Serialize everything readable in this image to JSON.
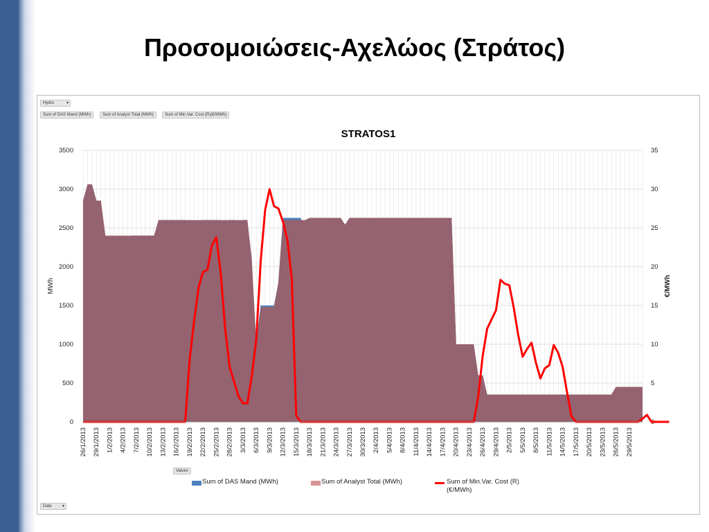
{
  "slide": {
    "title": "Προσομοιώσεις-Αχελώος (Στράτος)"
  },
  "pivot": {
    "filter_button": "Hydro",
    "value_buttons": [
      "Sum of DAS Mand  (MWh)",
      "Sum of Analyst Total (MWh)",
      "Sum of Min.Var. Cost (R)(€/MWh)"
    ],
    "values_button": "Values",
    "axis_button": "Date"
  },
  "colors": {
    "das": "#4f81bd",
    "analyst": "#c0504d",
    "overlap": "#956270",
    "cost": "#ff0000",
    "grid": "#d9d9d9",
    "slide_bar": "#3a5f91"
  },
  "chart_data": {
    "type": "area",
    "title": "STRATOS1",
    "ylabel": "MWh",
    "y2label": "€/MWh",
    "ylim": [
      0,
      3500
    ],
    "y2lim": [
      0,
      35
    ],
    "yticks": [
      0,
      500,
      1000,
      1500,
      2000,
      2500,
      3000,
      3500
    ],
    "y2ticks": [
      0,
      5,
      10,
      15,
      20,
      25,
      30,
      35
    ],
    "grid": true,
    "legend_position": "bottom",
    "x_start_date": "2013-01-26",
    "x_tick_labels": [
      "26/1/2013",
      "29/1/2013",
      "1/2/2013",
      "4/2/2013",
      "7/2/2013",
      "10/2/2013",
      "13/2/2013",
      "16/2/2013",
      "19/2/2013",
      "22/2/2013",
      "25/2/2013",
      "28/2/2013",
      "3/3/2013",
      "6/3/2013",
      "9/3/2013",
      "12/3/2013",
      "15/3/2013",
      "18/3/2013",
      "21/3/2013",
      "24/3/2013",
      "27/3/2013",
      "30/3/2013",
      "2/4/2013",
      "5/4/2013",
      "8/4/2013",
      "11/4/2013",
      "14/4/2013",
      "17/4/2013",
      "20/4/2013",
      "23/4/2013",
      "26/4/2013",
      "29/4/2013",
      "2/5/2013",
      "5/5/2013",
      "8/5/2013",
      "11/5/2013",
      "14/5/2013",
      "17/5/2013",
      "20/5/2013",
      "23/5/2013",
      "26/5/2013",
      "29/5/2013"
    ],
    "series": [
      {
        "name": "Sum of DAS Mand  (MWh)",
        "axis": "left",
        "style": "area",
        "values": [
          2850,
          3060,
          3060,
          2850,
          2850,
          2400,
          2380,
          2360,
          2400,
          2350,
          2280,
          2400,
          2400,
          2400,
          2400,
          2400,
          2400,
          2600,
          2600,
          2600,
          2600,
          2600,
          2600,
          2600,
          2280,
          2280,
          2400,
          2600,
          2600,
          2600,
          2600,
          2600,
          2400,
          2600,
          2600,
          2430,
          2600,
          2600,
          2000,
          1050,
          1500,
          1500,
          1500,
          1500,
          1800,
          2630,
          2630,
          2630,
          2630,
          2630,
          2500,
          2630,
          2630,
          2630,
          2630,
          2630,
          2630,
          2630,
          2630,
          2540,
          2630,
          2630,
          2630,
          2630,
          2630,
          2630,
          2630,
          2610,
          2630,
          2630,
          2630,
          2630,
          2630,
          2630,
          2630,
          2630,
          2630,
          2630,
          2630,
          2630,
          2630,
          2630,
          2630,
          2630,
          1000,
          800,
          1000,
          1000,
          1000,
          500,
          600,
          350,
          350,
          350,
          350,
          350,
          350,
          350,
          350,
          350,
          350,
          350,
          350,
          350,
          350,
          350,
          350,
          350,
          350,
          350,
          350,
          350,
          350,
          350,
          350,
          350,
          350,
          350,
          350,
          350,
          450,
          450,
          450,
          450,
          450,
          450,
          450
        ]
      },
      {
        "name": "Sum of Analyst Total (MWh)",
        "axis": "left",
        "style": "area",
        "values": [
          2850,
          3060,
          3060,
          2850,
          2850,
          2400,
          2400,
          2400,
          2400,
          2400,
          2400,
          2400,
          2400,
          2400,
          2400,
          2400,
          2400,
          2600,
          2600,
          2600,
          2600,
          2600,
          2600,
          2600,
          2600,
          2600,
          2600,
          2600,
          2600,
          2600,
          2600,
          2600,
          2600,
          2600,
          2600,
          2600,
          2600,
          2600,
          2100,
          1000,
          1480,
          1480,
          1480,
          1480,
          1800,
          2600,
          2600,
          2600,
          2600,
          2600,
          2600,
          2630,
          2630,
          2630,
          2630,
          2630,
          2630,
          2630,
          2630,
          2540,
          2630,
          2630,
          2630,
          2630,
          2630,
          2630,
          2630,
          2630,
          2630,
          2630,
          2630,
          2630,
          2630,
          2630,
          2630,
          2630,
          2630,
          2630,
          2630,
          2630,
          2630,
          2630,
          2630,
          2630,
          1000,
          1000,
          1000,
          1000,
          1000,
          600,
          600,
          350,
          350,
          350,
          350,
          350,
          350,
          350,
          350,
          350,
          350,
          350,
          350,
          350,
          350,
          350,
          350,
          350,
          350,
          350,
          350,
          350,
          350,
          350,
          350,
          350,
          350,
          350,
          350,
          350,
          450,
          450,
          450,
          450,
          450,
          450,
          450
        ]
      },
      {
        "name": "Sum of Min.Var. Cost (R) (€/MWh)",
        "axis": "right",
        "style": "line",
        "values": [
          0,
          0,
          0,
          0,
          0,
          0,
          0,
          0,
          0,
          0,
          0,
          0,
          0,
          0,
          0,
          0,
          0,
          0,
          0,
          0,
          0,
          0,
          0,
          0,
          8,
          13,
          17.3,
          19.3,
          19.6,
          22.7,
          23.8,
          19.2,
          12,
          7.1,
          5.2,
          3.3,
          2.4,
          2.4,
          5.9,
          10.6,
          20.7,
          27.3,
          30,
          27.8,
          27.5,
          25.8,
          23.5,
          18.5,
          0.8,
          0,
          0,
          0,
          0,
          0,
          0,
          0,
          0,
          0,
          0,
          0,
          0,
          0,
          0,
          0,
          0,
          0,
          0,
          0,
          0,
          0,
          0,
          0,
          0,
          0,
          0,
          0,
          0,
          0,
          0,
          0,
          0,
          0,
          0,
          0,
          0,
          0,
          0,
          0,
          0,
          3.3,
          8.5,
          12,
          13.2,
          14.4,
          18.3,
          17.8,
          17.6,
          14.7,
          11.2,
          8.4,
          9.4,
          10.2,
          7.6,
          5.6,
          6.9,
          7.3,
          9.9,
          8.9,
          7.1,
          3.8,
          0.7,
          0,
          0,
          0,
          0,
          0,
          0,
          0,
          0,
          0,
          0,
          0,
          0,
          0,
          0,
          0,
          0.4,
          0.9,
          0,
          0,
          0,
          0,
          0
        ]
      }
    ]
  }
}
